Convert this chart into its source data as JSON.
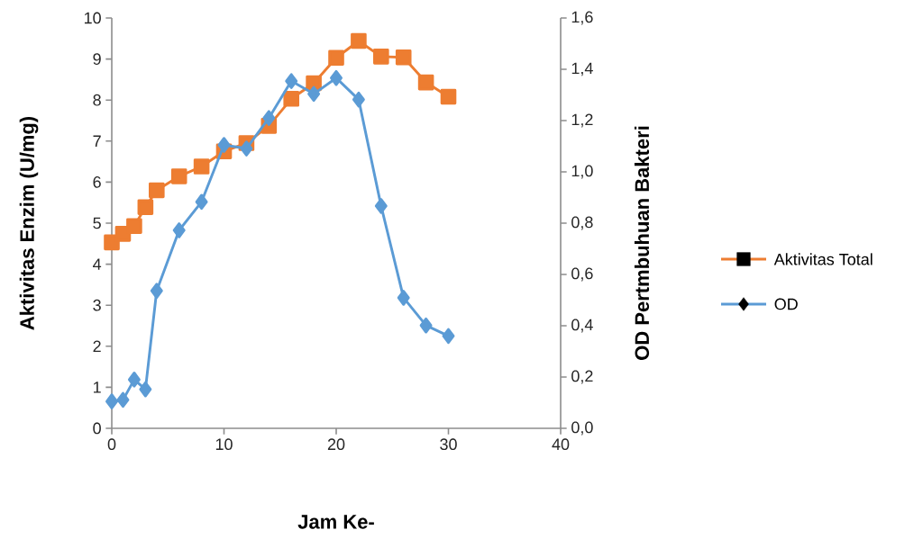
{
  "chart_data": {
    "type": "line",
    "xlabel": "Jam Ke-",
    "ylabel": "Aktivitas Enzim (U/mg)",
    "y2label": "OD Pertmbuhuan Bakteri",
    "x": [
      0,
      1,
      2,
      3,
      4,
      6,
      8,
      10,
      12,
      14,
      16,
      18,
      20,
      22,
      24,
      26,
      28,
      30
    ],
    "series": [
      {
        "name": "Aktivitas Total",
        "color": "#ed7d31",
        "marker": "square",
        "values": [
          4.53,
          4.74,
          4.93,
          5.39,
          5.8,
          6.14,
          6.38,
          6.75,
          6.95,
          7.37,
          8.03,
          8.41,
          9.03,
          9.44,
          9.06,
          9.04,
          8.43,
          8.08
        ]
      },
      {
        "name": "OD",
        "color": "#5b9bd5",
        "marker": "diamond",
        "axis": "y2",
        "values": [
          0.105,
          0.111,
          0.19,
          0.152,
          0.536,
          0.772,
          0.883,
          1.105,
          1.091,
          1.21,
          1.354,
          1.304,
          1.366,
          1.282,
          0.867,
          0.509,
          0.401,
          0.36
        ]
      }
    ],
    "xlim": [
      0,
      40
    ],
    "xticks": [
      0,
      10,
      20,
      30,
      40
    ],
    "ylim": [
      0,
      10
    ],
    "yticks": [
      0,
      1,
      2,
      3,
      4,
      5,
      6,
      7,
      8,
      9,
      10
    ],
    "y2lim": [
      0,
      1.6
    ],
    "y2ticks": [
      {
        "value": 0,
        "label": "0,0"
      },
      {
        "value": 0.2,
        "label": "0,2"
      },
      {
        "value": 0.4,
        "label": "0,4"
      },
      {
        "value": 0.6,
        "label": "0,6"
      },
      {
        "value": 0.8,
        "label": "0,8"
      },
      {
        "value": 1.0,
        "label": "1,0"
      },
      {
        "value": 1.2,
        "label": "1,2"
      },
      {
        "value": 1.4,
        "label": "1,4"
      },
      {
        "value": 1.6,
        "label": "1,6"
      }
    ],
    "legend": "right",
    "grid": false
  }
}
